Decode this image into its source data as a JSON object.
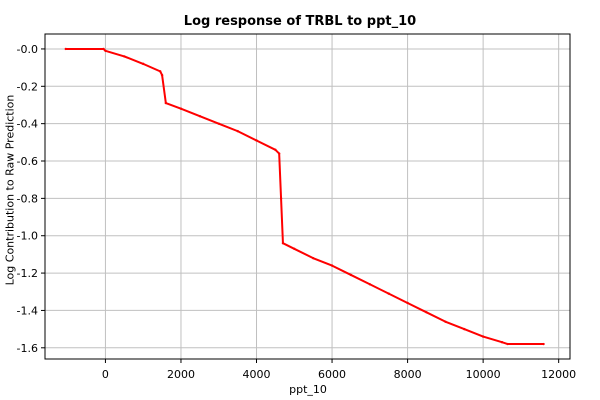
{
  "chart_data": {
    "type": "line",
    "title": "Log response of TRBL to ppt_10",
    "xlabel": "ppt_10",
    "ylabel": "Log Contribution to Raw Prediction",
    "xlim": [
      -1600,
      12300
    ],
    "ylim": [
      -1.66,
      0.08
    ],
    "x_ticks": [
      0,
      2000,
      4000,
      6000,
      8000,
      10000,
      12000
    ],
    "y_ticks": [
      0.0,
      -0.2,
      -0.4,
      -0.6,
      -0.8,
      -1.0,
      -1.2,
      -1.4,
      -1.6
    ],
    "x_tick_labels": [
      "0",
      "2000",
      "4000",
      "6000",
      "8000",
      "10000",
      "12000"
    ],
    "y_tick_labels": [
      "-0.0",
      "-0.2",
      "-0.4",
      "-0.6",
      "-0.8",
      "-1.0",
      "-1.2",
      "-1.4",
      "-1.6"
    ],
    "grid": true,
    "line_color": "#ff0000",
    "grid_color": "#c0c0c0",
    "series": [
      {
        "x": [
          -1050,
          -50,
          0,
          500,
          1000,
          1450,
          1500,
          1600,
          2000,
          2500,
          3000,
          3500,
          4000,
          4500,
          4600,
          4650,
          4700,
          5000,
          5500,
          6000,
          6500,
          7000,
          7500,
          8000,
          8500,
          9000,
          9500,
          10000,
          10500,
          10650,
          11600
        ],
        "y": [
          0.0,
          0.0,
          -0.01,
          -0.04,
          -0.08,
          -0.12,
          -0.14,
          -0.29,
          -0.32,
          -0.36,
          -0.4,
          -0.44,
          -0.49,
          -0.54,
          -0.56,
          -0.8,
          -1.04,
          -1.07,
          -1.12,
          -1.16,
          -1.21,
          -1.26,
          -1.31,
          -1.36,
          -1.41,
          -1.46,
          -1.5,
          -1.54,
          -1.57,
          -1.58,
          -1.58
        ]
      }
    ]
  }
}
